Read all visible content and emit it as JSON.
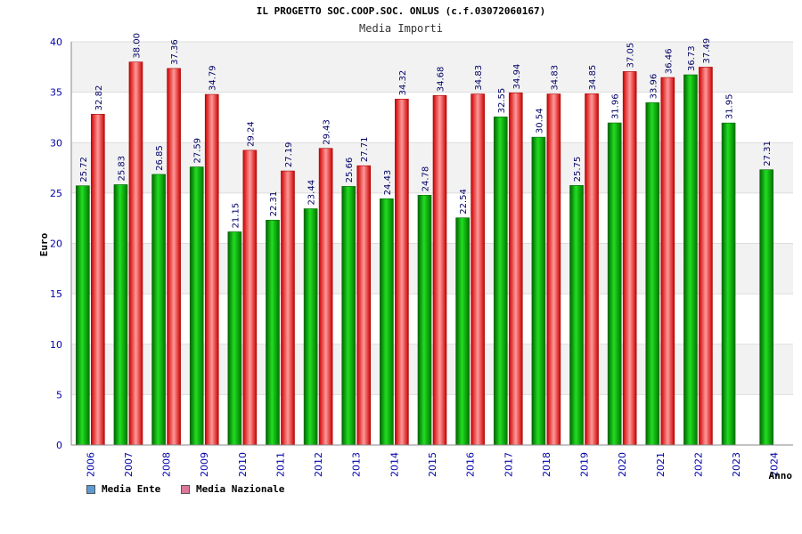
{
  "chart_data": {
    "type": "bar",
    "title": "IL PROGETTO SOC.COOP.SOC. ONLUS (c.f.03072060167)",
    "subtitle": "Media Importi",
    "xlabel": "Anno",
    "ylabel": "Euro",
    "ylim": [
      0,
      40
    ],
    "yticks": [
      0,
      5,
      10,
      15,
      20,
      25,
      30,
      35,
      40
    ],
    "grid": true,
    "legend_position": "bottom-left",
    "categories": [
      "2006",
      "2007",
      "2008",
      "2009",
      "2010",
      "2011",
      "2012",
      "2013",
      "2014",
      "2015",
      "2016",
      "2017",
      "2018",
      "2019",
      "2020",
      "2021",
      "2022",
      "2023",
      "2024"
    ],
    "series": [
      {
        "name": "Media Ente",
        "color": "#00aa00",
        "legend_color": "#5b9bd5",
        "values": [
          25.72,
          25.83,
          26.85,
          27.59,
          21.15,
          22.31,
          23.44,
          25.66,
          24.43,
          24.78,
          22.54,
          32.55,
          30.54,
          25.75,
          31.96,
          33.96,
          36.73,
          31.95,
          27.31
        ],
        "labels": [
          "25.72",
          "25.83",
          "26.85",
          "27.59",
          "21.15",
          "22.31",
          "23.44",
          "25.66",
          "24.43",
          "24.78",
          "22.54",
          "32.55",
          "30.54",
          "25.75",
          "31.96",
          "33.96",
          "36.73",
          "31.95",
          "27.31"
        ]
      },
      {
        "name": "Media Nazionale",
        "color": "#dd1111",
        "legend_color": "#dd7799",
        "values": [
          32.82,
          38.0,
          37.36,
          34.79,
          29.24,
          27.19,
          29.43,
          27.71,
          34.32,
          34.68,
          34.83,
          34.94,
          34.83,
          34.85,
          37.05,
          36.46,
          37.49,
          null,
          null
        ],
        "labels": [
          "32.82",
          "38.00",
          "37.36",
          "34.79",
          "29.24",
          "27.19",
          "29.43",
          "27.71",
          "34.32",
          "34.68",
          "34.83",
          "34.94",
          "34.83",
          "34.85",
          "37.05",
          "36.46",
          "37.49",
          "",
          ""
        ]
      }
    ]
  }
}
